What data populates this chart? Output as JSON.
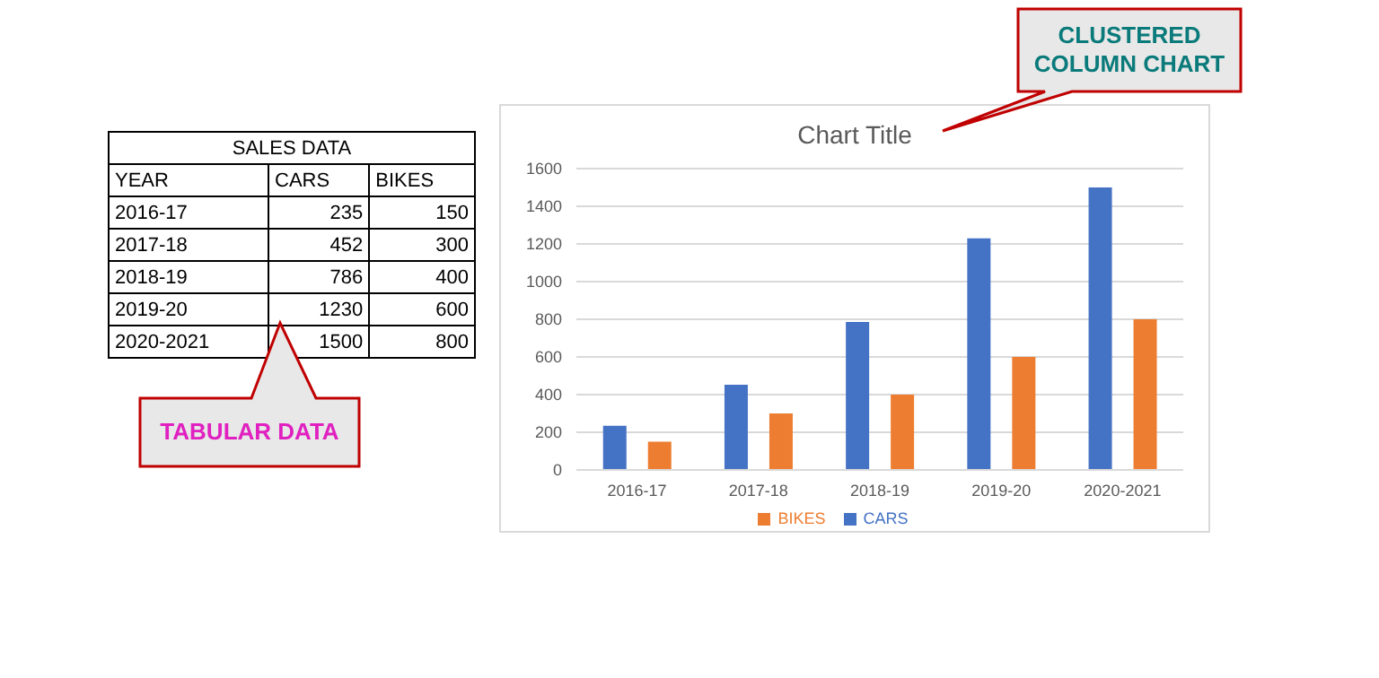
{
  "chart_data": [
    {
      "type": "other",
      "title": "SALES DATA",
      "xlabel": "YEAR",
      "categories": [
        "2016-17",
        "2017-18",
        "2018-19",
        "2019-20",
        "2020-2021"
      ],
      "series": [
        {
          "name": "CARS",
          "values": [
            235,
            452,
            786,
            1230,
            1500
          ]
        },
        {
          "name": "BIKES",
          "values": [
            150,
            300,
            400,
            600,
            800
          ]
        }
      ],
      "data_labels": true,
      "annotations": [
        "TABULAR DATA"
      ]
    },
    {
      "type": "bar",
      "title": "Chart Title",
      "categories": [
        "2016-17",
        "2017-18",
        "2018-19",
        "2019-20",
        "2020-2021"
      ],
      "series": [
        {
          "name": "CARS",
          "color": "#4472c4",
          "values": [
            235,
            452,
            786,
            1230,
            1500
          ]
        },
        {
          "name": "BIKES",
          "color": "#ed7d31",
          "values": [
            150,
            300,
            400,
            600,
            800
          ]
        }
      ],
      "ylim": [
        0,
        1600
      ],
      "yticks": [
        0,
        200,
        400,
        600,
        800,
        1000,
        1200,
        1400,
        1600
      ],
      "grid": "y",
      "legend": "bottom",
      "annotations": [
        "CLUSTERED COLUMN CHART"
      ]
    }
  ]
}
